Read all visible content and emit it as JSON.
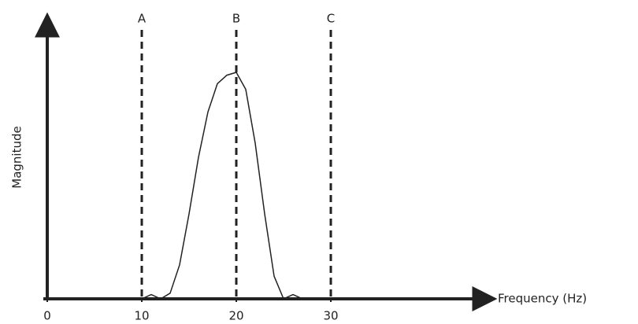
{
  "chart_data": {
    "type": "line",
    "x_label": "Frequency (Hz)",
    "y_label": "Magnitude",
    "x": [
      10,
      11,
      12,
      13,
      14,
      15,
      16,
      17,
      18,
      19,
      20,
      21,
      22,
      23,
      24,
      25,
      26,
      27
    ],
    "series": [
      {
        "color": "#222222",
        "values": [
          0,
          0.015,
          0,
          0.02,
          0.12,
          0.3,
          0.5,
          0.66,
          0.76,
          0.79,
          0.8,
          0.74,
          0.55,
          0.3,
          0.08,
          0,
          0.015,
          0
        ]
      }
    ],
    "markers": [
      {
        "label": "A",
        "x": 10
      },
      {
        "label": "B",
        "x": 20
      },
      {
        "label": "C",
        "x": 30
      }
    ],
    "xlim": [
      0,
      45
    ],
    "ylim": [
      0,
      1
    ],
    "xticks": [
      0,
      10,
      20,
      30
    ]
  }
}
